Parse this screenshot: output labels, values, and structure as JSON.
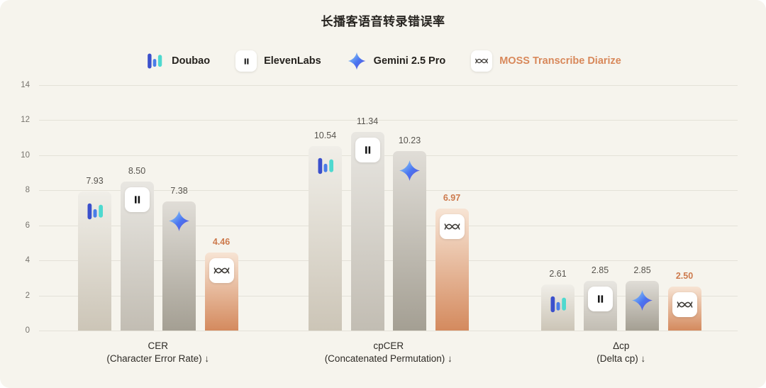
{
  "title": "长播客语音转录错误率",
  "colors": {
    "background": "#f6f4ed",
    "gridline": "#e4e1d8",
    "tick_text": "#77746e",
    "title_text": "#272420",
    "value_text": "#57544e",
    "moss_accent": "#d8885a",
    "moss_value_text": "#cd7a4d",
    "doubao_icon": [
      "#3b50cc",
      "#4a7de8",
      "#4ed9cf"
    ],
    "gemini_icon": [
      "#8fd0f7",
      "#4a74f0",
      "#5f54d8"
    ]
  },
  "legend": {
    "position": "top",
    "items": [
      {
        "id": "doubao",
        "label": "Doubao",
        "icon": "doubao-bars-icon"
      },
      {
        "id": "elevenlabs",
        "label": "ElevenLabs",
        "icon": "elevenlabs-pause-icon"
      },
      {
        "id": "gemini",
        "label": "Gemini 2.5 Pro",
        "icon": "gemini-star-icon"
      },
      {
        "id": "moss",
        "label": "MOSS Transcribe Diarize",
        "icon": "moss-waveform-icon"
      }
    ]
  },
  "chart_data": {
    "type": "bar",
    "title": "长播客语音转录错误率",
    "xlabel": "",
    "ylabel": "",
    "ylim": [
      0,
      14
    ],
    "y_ticks": [
      0,
      2,
      4,
      6,
      8,
      10,
      12,
      14
    ],
    "grid": true,
    "legend_position": "top",
    "groups": [
      {
        "name": "CER",
        "subtitle": "(Character Error Rate) ↓"
      },
      {
        "name": "cpCER",
        "subtitle": "(Concatenated Permutation) ↓"
      },
      {
        "name": "Δcp",
        "subtitle": "(Delta cp) ↓"
      }
    ],
    "series": [
      {
        "id": "doubao",
        "name": "Doubao",
        "values": [
          7.93,
          10.54,
          2.61
        ],
        "bar_gradient": [
          "#f0eee8",
          "#ccc5b7"
        ],
        "value_color": "#57544e"
      },
      {
        "id": "elevenlabs",
        "name": "ElevenLabs",
        "values": [
          8.5,
          11.34,
          2.85
        ],
        "bar_gradient": [
          "#e8e6e1",
          "#c2bdb3"
        ],
        "value_color": "#57544e"
      },
      {
        "id": "gemini",
        "name": "Gemini 2.5 Pro",
        "values": [
          7.38,
          10.23,
          2.85
        ],
        "bar_gradient": [
          "#e0ddd7",
          "#a49f93"
        ],
        "value_color": "#57544e"
      },
      {
        "id": "moss",
        "name": "MOSS Transcribe Diarize",
        "values": [
          4.46,
          6.97,
          2.5
        ],
        "bar_gradient": [
          "#f7e4d4",
          "#d48a5e"
        ],
        "value_color": "#cd7a4d"
      }
    ]
  }
}
